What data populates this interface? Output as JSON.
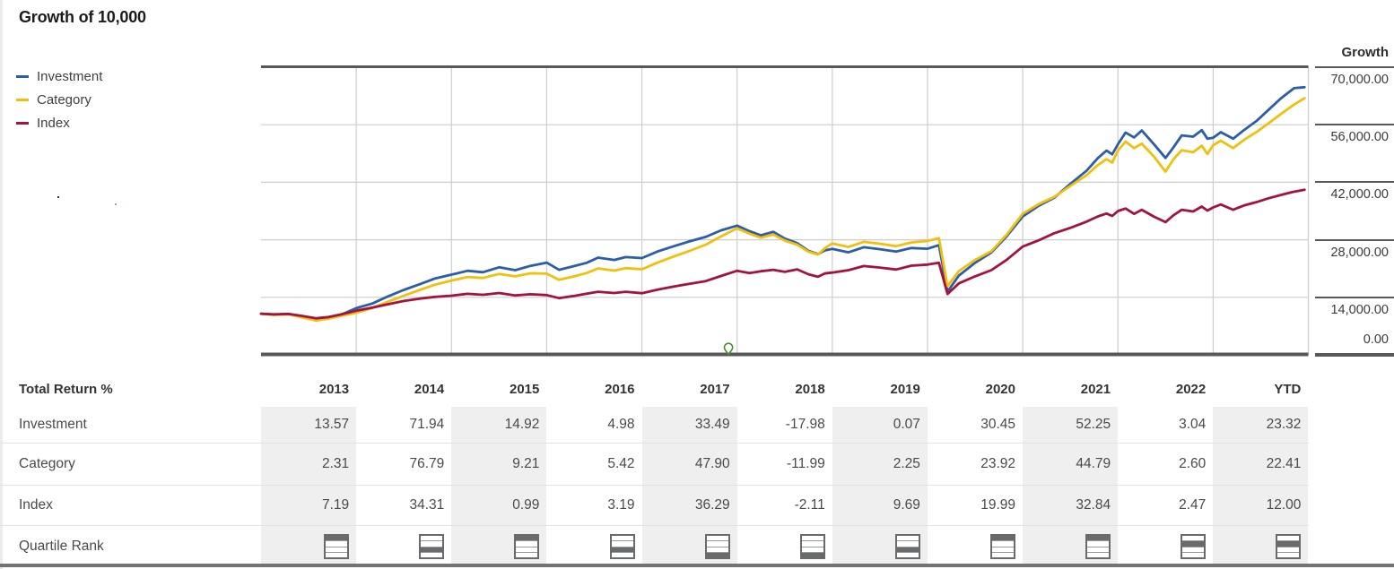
{
  "title": "Growth of 10,000",
  "legend": [
    {
      "name": "Investment",
      "color": "#2b5da9"
    },
    {
      "name": "Category",
      "color": "#f2bf0e"
    },
    {
      "name": "Index",
      "color": "#a2133e"
    }
  ],
  "growth_axis": {
    "header": "Growth",
    "ticks": [
      {
        "label": "70,000.00",
        "value": 70000
      },
      {
        "label": "56,000.00",
        "value": 56000
      },
      {
        "label": "42,000.00",
        "value": 42000
      },
      {
        "label": "28,000.00",
        "value": 28000
      },
      {
        "label": "14,000.00",
        "value": 14000
      },
      {
        "label": "0.00",
        "value": 0
      }
    ]
  },
  "chart_data": {
    "type": "line",
    "title": "Growth of 10,000",
    "ylabel": "Growth",
    "ylim": [
      0,
      70000
    ],
    "x_start_year": 2013,
    "x_end_year": 2024,
    "grid": true,
    "legend_position": "left",
    "gridline_years": [
      2014,
      2015,
      2016,
      2017,
      2018,
      2019,
      2020,
      2021,
      2022,
      2023
    ],
    "event_marker": {
      "icon": "map-pin-icon",
      "color": "#4c8c2c",
      "year": 2017.91,
      "value": 0
    },
    "series": [
      {
        "name": "Investment",
        "color": "#2b5da9",
        "points": [
          [
            2013.0,
            10000
          ],
          [
            2013.13,
            9800
          ],
          [
            2013.29,
            9950
          ],
          [
            2013.42,
            9350
          ],
          [
            2013.58,
            8520
          ],
          [
            2013.71,
            8900
          ],
          [
            2013.83,
            9650
          ],
          [
            2014.0,
            11357
          ],
          [
            2014.17,
            12500
          ],
          [
            2014.33,
            14200
          ],
          [
            2014.5,
            15800
          ],
          [
            2014.67,
            17200
          ],
          [
            2014.83,
            18600
          ],
          [
            2015.0,
            19527
          ],
          [
            2015.17,
            20450
          ],
          [
            2015.33,
            20100
          ],
          [
            2015.5,
            21300
          ],
          [
            2015.67,
            20600
          ],
          [
            2015.83,
            21650
          ],
          [
            2016.0,
            22440
          ],
          [
            2016.13,
            20700
          ],
          [
            2016.29,
            21600
          ],
          [
            2016.42,
            22400
          ],
          [
            2016.54,
            23650
          ],
          [
            2016.71,
            23100
          ],
          [
            2016.83,
            23800
          ],
          [
            2017.0,
            23557
          ],
          [
            2017.17,
            25200
          ],
          [
            2017.33,
            26400
          ],
          [
            2017.5,
            27600
          ],
          [
            2017.67,
            28700
          ],
          [
            2017.83,
            30300
          ],
          [
            2018.0,
            31446
          ],
          [
            2018.13,
            30100
          ],
          [
            2018.25,
            29100
          ],
          [
            2018.38,
            29950
          ],
          [
            2018.5,
            28300
          ],
          [
            2018.63,
            27200
          ],
          [
            2018.75,
            25300
          ],
          [
            2018.85,
            24500
          ],
          [
            2018.92,
            25400
          ],
          [
            2019.0,
            25792
          ],
          [
            2019.17,
            24950
          ],
          [
            2019.33,
            26200
          ],
          [
            2019.5,
            25700
          ],
          [
            2019.67,
            25150
          ],
          [
            2019.83,
            26000
          ],
          [
            2020.0,
            25810
          ],
          [
            2020.12,
            26700
          ],
          [
            2020.21,
            15400
          ],
          [
            2020.33,
            19300
          ],
          [
            2020.5,
            22400
          ],
          [
            2020.67,
            24900
          ],
          [
            2020.83,
            28800
          ],
          [
            2021.0,
            33669
          ],
          [
            2021.17,
            36300
          ],
          [
            2021.33,
            38200
          ],
          [
            2021.5,
            41600
          ],
          [
            2021.67,
            44800
          ],
          [
            2021.79,
            47900
          ],
          [
            2021.88,
            49700
          ],
          [
            2021.94,
            48800
          ],
          [
            2022.0,
            51261
          ],
          [
            2022.08,
            54100
          ],
          [
            2022.17,
            52900
          ],
          [
            2022.25,
            54600
          ],
          [
            2022.38,
            51200
          ],
          [
            2022.5,
            47900
          ],
          [
            2022.58,
            50400
          ],
          [
            2022.67,
            53400
          ],
          [
            2022.79,
            53100
          ],
          [
            2022.88,
            54700
          ],
          [
            2022.94,
            52600
          ],
          [
            2023.0,
            52819
          ],
          [
            2023.08,
            54200
          ],
          [
            2023.21,
            52600
          ],
          [
            2023.33,
            54800
          ],
          [
            2023.46,
            57000
          ],
          [
            2023.58,
            59600
          ],
          [
            2023.71,
            62400
          ],
          [
            2023.85,
            64900
          ],
          [
            2023.96,
            65136
          ]
        ]
      },
      {
        "name": "Category",
        "color": "#f2bf0e",
        "points": [
          [
            2013.0,
            10000
          ],
          [
            2013.13,
            9700
          ],
          [
            2013.29,
            9850
          ],
          [
            2013.42,
            9150
          ],
          [
            2013.58,
            8320
          ],
          [
            2013.71,
            8800
          ],
          [
            2013.83,
            9450
          ],
          [
            2014.0,
            10231
          ],
          [
            2014.17,
            11400
          ],
          [
            2014.33,
            12900
          ],
          [
            2014.5,
            14400
          ],
          [
            2014.67,
            15800
          ],
          [
            2014.83,
            17100
          ],
          [
            2015.0,
            18087
          ],
          [
            2015.17,
            18950
          ],
          [
            2015.33,
            18700
          ],
          [
            2015.5,
            19700
          ],
          [
            2015.67,
            19100
          ],
          [
            2015.83,
            19850
          ],
          [
            2016.0,
            19753
          ],
          [
            2016.13,
            18250
          ],
          [
            2016.29,
            19100
          ],
          [
            2016.42,
            19900
          ],
          [
            2016.54,
            21050
          ],
          [
            2016.71,
            20500
          ],
          [
            2016.83,
            21100
          ],
          [
            2017.0,
            20824
          ],
          [
            2017.17,
            22500
          ],
          [
            2017.33,
            23900
          ],
          [
            2017.5,
            25300
          ],
          [
            2017.67,
            26800
          ],
          [
            2017.83,
            28800
          ],
          [
            2018.0,
            30799
          ],
          [
            2018.13,
            29500
          ],
          [
            2018.25,
            28500
          ],
          [
            2018.38,
            29300
          ],
          [
            2018.5,
            27800
          ],
          [
            2018.63,
            26800
          ],
          [
            2018.75,
            25100
          ],
          [
            2018.85,
            24400
          ],
          [
            2018.92,
            25900
          ],
          [
            2019.0,
            27106
          ],
          [
            2019.17,
            26250
          ],
          [
            2019.33,
            27500
          ],
          [
            2019.5,
            27050
          ],
          [
            2019.67,
            26450
          ],
          [
            2019.83,
            27350
          ],
          [
            2020.0,
            27716
          ],
          [
            2020.12,
            28400
          ],
          [
            2020.21,
            16700
          ],
          [
            2020.33,
            20400
          ],
          [
            2020.5,
            23100
          ],
          [
            2020.67,
            25200
          ],
          [
            2020.83,
            29200
          ],
          [
            2021.0,
            34347
          ],
          [
            2021.17,
            36700
          ],
          [
            2021.33,
            38400
          ],
          [
            2021.5,
            41100
          ],
          [
            2021.67,
            43700
          ],
          [
            2021.79,
            46200
          ],
          [
            2021.88,
            47600
          ],
          [
            2021.94,
            46800
          ],
          [
            2022.0,
            49730
          ],
          [
            2022.08,
            51900
          ],
          [
            2022.17,
            50300
          ],
          [
            2022.25,
            51400
          ],
          [
            2022.38,
            48200
          ],
          [
            2022.5,
            44600
          ],
          [
            2022.58,
            47500
          ],
          [
            2022.67,
            49800
          ],
          [
            2022.79,
            49300
          ],
          [
            2022.88,
            50900
          ],
          [
            2022.94,
            48900
          ],
          [
            2023.0,
            51023
          ],
          [
            2023.08,
            52100
          ],
          [
            2023.21,
            50300
          ],
          [
            2023.33,
            52400
          ],
          [
            2023.46,
            54300
          ],
          [
            2023.58,
            56300
          ],
          [
            2023.71,
            58600
          ],
          [
            2023.85,
            60900
          ],
          [
            2023.96,
            62457
          ]
        ]
      },
      {
        "name": "Index",
        "color": "#a2133e",
        "points": [
          [
            2013.0,
            10000
          ],
          [
            2013.13,
            9850
          ],
          [
            2013.29,
            9950
          ],
          [
            2013.42,
            9500
          ],
          [
            2013.58,
            8900
          ],
          [
            2013.71,
            9200
          ],
          [
            2013.83,
            9800
          ],
          [
            2014.0,
            10719
          ],
          [
            2014.17,
            11500
          ],
          [
            2014.33,
            12300
          ],
          [
            2014.5,
            13100
          ],
          [
            2014.67,
            13700
          ],
          [
            2014.83,
            14100
          ],
          [
            2015.0,
            14397
          ],
          [
            2015.17,
            14850
          ],
          [
            2015.33,
            14600
          ],
          [
            2015.5,
            15050
          ],
          [
            2015.67,
            14450
          ],
          [
            2015.83,
            14750
          ],
          [
            2016.0,
            14540
          ],
          [
            2016.13,
            13800
          ],
          [
            2016.29,
            14350
          ],
          [
            2016.42,
            14900
          ],
          [
            2016.54,
            15350
          ],
          [
            2016.71,
            15050
          ],
          [
            2016.83,
            15350
          ],
          [
            2017.0,
            15004
          ],
          [
            2017.17,
            15900
          ],
          [
            2017.33,
            16600
          ],
          [
            2017.5,
            17300
          ],
          [
            2017.67,
            17950
          ],
          [
            2017.83,
            19200
          ],
          [
            2018.0,
            20449
          ],
          [
            2018.13,
            19900
          ],
          [
            2018.25,
            20350
          ],
          [
            2018.38,
            20700
          ],
          [
            2018.5,
            20200
          ],
          [
            2018.63,
            20800
          ],
          [
            2018.75,
            19600
          ],
          [
            2018.85,
            19000
          ],
          [
            2018.92,
            19800
          ],
          [
            2019.0,
            20018
          ],
          [
            2019.17,
            20600
          ],
          [
            2019.33,
            21600
          ],
          [
            2019.5,
            21250
          ],
          [
            2019.67,
            20750
          ],
          [
            2019.83,
            21700
          ],
          [
            2020.0,
            21958
          ],
          [
            2020.12,
            22400
          ],
          [
            2020.21,
            14800
          ],
          [
            2020.33,
            17400
          ],
          [
            2020.5,
            19100
          ],
          [
            2020.67,
            20600
          ],
          [
            2020.83,
            23100
          ],
          [
            2021.0,
            26347
          ],
          [
            2021.17,
            27900
          ],
          [
            2021.33,
            29600
          ],
          [
            2021.5,
            30900
          ],
          [
            2021.67,
            32400
          ],
          [
            2021.79,
            33700
          ],
          [
            2021.88,
            34400
          ],
          [
            2021.94,
            33800
          ],
          [
            2022.0,
            34999
          ],
          [
            2022.08,
            35600
          ],
          [
            2022.17,
            34300
          ],
          [
            2022.25,
            35300
          ],
          [
            2022.38,
            33600
          ],
          [
            2022.5,
            32300
          ],
          [
            2022.58,
            33900
          ],
          [
            2022.67,
            35300
          ],
          [
            2022.79,
            34900
          ],
          [
            2022.88,
            36100
          ],
          [
            2022.94,
            35100
          ],
          [
            2023.0,
            35864
          ],
          [
            2023.08,
            36600
          ],
          [
            2023.21,
            35300
          ],
          [
            2023.33,
            36400
          ],
          [
            2023.46,
            37200
          ],
          [
            2023.58,
            38100
          ],
          [
            2023.71,
            38900
          ],
          [
            2023.83,
            39600
          ],
          [
            2023.96,
            40168
          ]
        ]
      }
    ]
  },
  "table": {
    "header_label": "Total Return %",
    "columns": [
      "2013",
      "2014",
      "2015",
      "2016",
      "2017",
      "2018",
      "2019",
      "2020",
      "2021",
      "2022",
      "YTD"
    ],
    "shaded_columns": [
      0,
      2,
      4,
      6,
      8,
      10
    ],
    "rows": [
      {
        "label": "Investment",
        "values": [
          "13.57",
          "71.94",
          "14.92",
          "4.98",
          "33.49",
          "-17.98",
          "0.07",
          "30.45",
          "52.25",
          "3.04",
          "23.32"
        ]
      },
      {
        "label": "Category",
        "values": [
          "2.31",
          "76.79",
          "9.21",
          "5.42",
          "47.90",
          "-11.99",
          "2.25",
          "23.92",
          "44.79",
          "2.60",
          "22.41"
        ]
      },
      {
        "label": "Index",
        "values": [
          "7.19",
          "34.31",
          "0.99",
          "3.19",
          "36.29",
          "-2.11",
          "9.69",
          "19.99",
          "32.84",
          "2.47",
          "12.00"
        ]
      }
    ],
    "quartile_row_label": "Quartile Rank",
    "quartile_ranks": [
      1,
      3,
      1,
      3,
      4,
      4,
      3,
      1,
      1,
      2,
      2
    ]
  },
  "colors": {
    "axis_dark": "#57585a",
    "gridline": "#cdcdcd",
    "shaded_column": "#efefef",
    "bottom_border": "#737373",
    "quartile_icon": "#696a6c",
    "pin_green": "#4c8c2c"
  }
}
